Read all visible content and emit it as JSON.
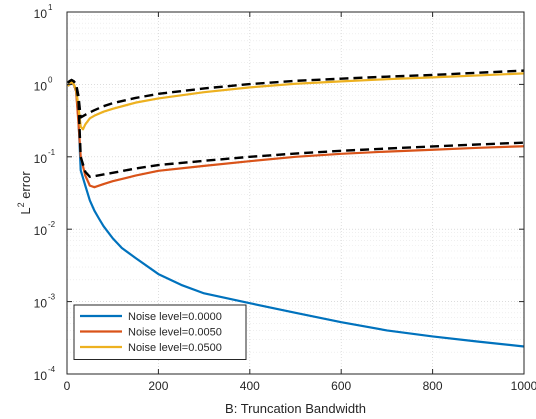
{
  "chart_data": {
    "type": "line",
    "xlabel": "B: Truncation Bandwidth",
    "ylabel": "L² error",
    "ylabel_base": "L",
    "ylabel_sup": "2",
    "ylabel_rest": " error",
    "xlim": [
      0,
      1000
    ],
    "ylim": [
      0.0001,
      10
    ],
    "yscale": "log",
    "grid": true,
    "legend_position": "bottom-left",
    "x_ticks": [
      0,
      200,
      400,
      600,
      800,
      1000
    ],
    "x_tick_labels": [
      "0",
      "200",
      "400",
      "600",
      "800",
      "1000"
    ],
    "y_ticks": [
      0.0001,
      0.001,
      0.01,
      0.1,
      1,
      10
    ],
    "y_tick_labels": [
      {
        "base": "10",
        "exp": "-4"
      },
      {
        "base": "10",
        "exp": "-3"
      },
      {
        "base": "10",
        "exp": "-2"
      },
      {
        "base": "10",
        "exp": "-1"
      },
      {
        "base": "10",
        "exp": "0"
      },
      {
        "base": "10",
        "exp": "1"
      }
    ],
    "series": [
      {
        "name": "Noise level=0.0000",
        "color": "#0072BD",
        "style": "solid",
        "x": [
          2,
          5,
          10,
          15,
          20,
          25,
          30,
          40,
          50,
          60,
          70,
          80,
          100,
          120,
          150,
          200,
          250,
          300,
          400,
          500,
          600,
          700,
          800,
          900,
          1000
        ],
        "y": [
          0.95,
          1.0,
          1.02,
          1.0,
          0.8,
          0.35,
          0.065,
          0.04,
          0.025,
          0.018,
          0.014,
          0.011,
          0.0075,
          0.0055,
          0.004,
          0.0024,
          0.0017,
          0.0013,
          0.00095,
          0.0007,
          0.00052,
          0.0004,
          0.00033,
          0.00028,
          0.00024
        ]
      },
      {
        "name": "Noise level=0.0050",
        "color": "#D95319",
        "style": "solid",
        "x": [
          2,
          5,
          10,
          15,
          20,
          25,
          30,
          40,
          50,
          60,
          80,
          100,
          150,
          200,
          300,
          400,
          500,
          600,
          700,
          800,
          900,
          1000
        ],
        "y": [
          0.95,
          1.0,
          1.05,
          1.0,
          0.8,
          0.3,
          0.1,
          0.055,
          0.04,
          0.038,
          0.042,
          0.046,
          0.055,
          0.064,
          0.075,
          0.087,
          0.1,
          0.11,
          0.118,
          0.125,
          0.133,
          0.14
        ]
      },
      {
        "name": "Noise level=0.0500",
        "color": "#EDB120",
        "style": "solid",
        "x": [
          2,
          5,
          10,
          15,
          20,
          25,
          30,
          35,
          40,
          50,
          60,
          80,
          100,
          150,
          200,
          300,
          400,
          500,
          600,
          700,
          800,
          900,
          1000
        ],
        "y": [
          0.95,
          1.0,
          1.1,
          1.0,
          0.85,
          0.5,
          0.26,
          0.24,
          0.28,
          0.34,
          0.37,
          0.42,
          0.46,
          0.56,
          0.64,
          0.78,
          0.91,
          1.02,
          1.1,
          1.18,
          1.25,
          1.33,
          1.42
        ]
      },
      {
        "color": "#000000",
        "style": "dashed",
        "x": [
          2,
          5,
          10,
          15,
          20,
          25,
          30,
          40,
          50,
          60,
          80,
          100,
          150,
          200,
          300,
          400,
          500,
          600,
          700,
          800,
          900,
          1000
        ],
        "y": [
          1.05,
          1.1,
          1.15,
          1.1,
          1.0,
          0.6,
          0.1,
          0.062,
          0.053,
          0.054,
          0.057,
          0.06,
          0.069,
          0.077,
          0.088,
          0.1,
          0.111,
          0.121,
          0.13,
          0.139,
          0.148,
          0.157
        ]
      },
      {
        "color": "#000000",
        "style": "dashed",
        "x": [
          2,
          5,
          10,
          15,
          20,
          25,
          30,
          40,
          50,
          60,
          80,
          100,
          150,
          200,
          300,
          400,
          500,
          600,
          700,
          800,
          900,
          1000
        ],
        "y": [
          1.05,
          1.1,
          1.15,
          1.1,
          1.0,
          0.7,
          0.35,
          0.38,
          0.41,
          0.44,
          0.5,
          0.55,
          0.65,
          0.74,
          0.88,
          1.01,
          1.12,
          1.2,
          1.28,
          1.35,
          1.45,
          1.55
        ]
      }
    ]
  }
}
